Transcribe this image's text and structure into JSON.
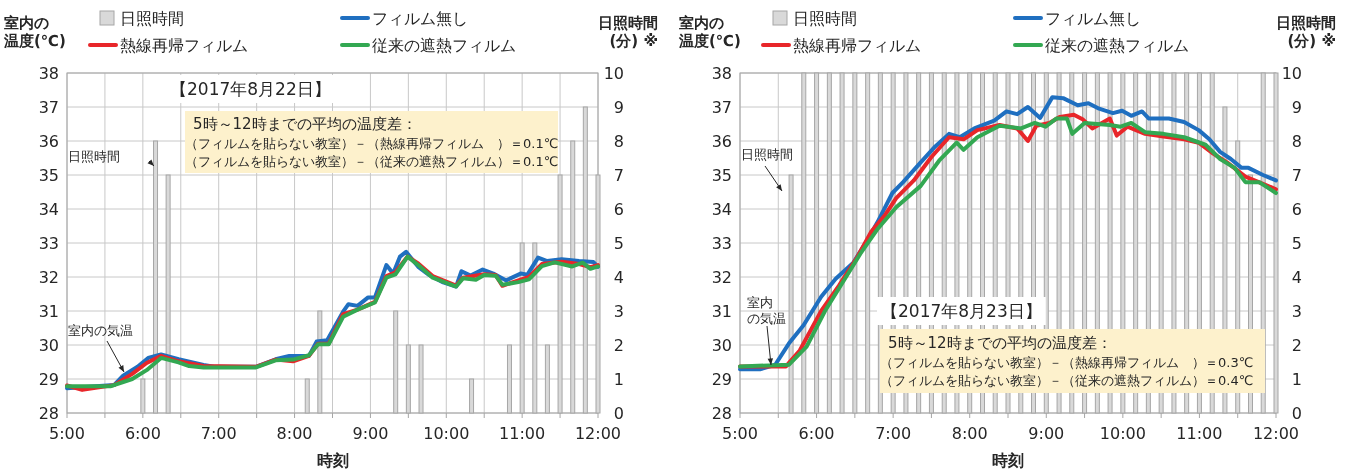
{
  "chart_data": [
    {
      "type": "line",
      "xlabel": "時刻",
      "ylabel": "室内の温度(℃)",
      "y2label": "日照時間\n(分) ※",
      "xlim": [
        5,
        12
      ],
      "xticks": [
        {
          "value": 5,
          "label": "5:00"
        },
        {
          "value": 5.5,
          "label": null
        },
        {
          "value": 6,
          "label": "6:00"
        },
        {
          "value": 6.5,
          "label": null
        },
        {
          "value": 7,
          "label": "7:00"
        },
        {
          "value": 7.5,
          "label": null
        },
        {
          "value": 8,
          "label": "8:00"
        },
        {
          "value": 8.5,
          "label": null
        },
        {
          "value": 9,
          "label": "9:00"
        },
        {
          "value": 9.5,
          "label": null
        },
        {
          "value": 10,
          "label": "10:00"
        },
        {
          "value": 10.5,
          "label": null
        },
        {
          "value": 11,
          "label": "11:00"
        },
        {
          "value": 11.5,
          "label": null
        },
        {
          "value": 12,
          "label": "12:00"
        }
      ],
      "ylim": [
        28,
        38
      ],
      "yticks": [
        28,
        29,
        30,
        31,
        32,
        33,
        34,
        35,
        36,
        37,
        38
      ],
      "y2lim": [
        0,
        10
      ],
      "y2ticks": [
        0,
        1,
        2,
        3,
        4,
        5,
        6,
        7,
        8,
        9,
        10
      ],
      "grid": true,
      "legend": "top",
      "annotations": [
        "【2017年8月22日】",
        "5時～12時までの平均の温度差：",
        "（フィルムを貼らない教室）－（熱線再帰フィルム　）＝0.1℃",
        "（フィルムを貼らない教室）－（従来の遮熱フィルム）＝0.1℃",
        "日照時間",
        "室内の気温"
      ],
      "series": [
        {
          "name": "日照時間",
          "type": "bar",
          "axis": "y2",
          "color": "#d9d9d9",
          "x": [
            5,
            5.167,
            5.333,
            5.5,
            5.667,
            5.833,
            6,
            6.167,
            6.333,
            6.5,
            6.667,
            6.833,
            7,
            7.167,
            7.333,
            7.5,
            7.667,
            7.833,
            8,
            8.167,
            8.333,
            8.5,
            8.667,
            8.833,
            9,
            9.167,
            9.333,
            9.5,
            9.667,
            9.833,
            10,
            10.167,
            10.333,
            10.5,
            10.667,
            10.833,
            11,
            11.167,
            11.333,
            11.5,
            11.667,
            11.833,
            12
          ],
          "values": [
            0,
            0,
            0,
            0,
            0,
            0,
            1,
            8,
            7,
            0,
            0,
            0,
            0,
            0,
            0,
            0,
            0,
            0,
            0,
            1,
            3,
            0,
            0,
            0,
            0,
            0,
            3,
            2,
            2,
            0,
            0,
            0,
            1,
            0,
            0,
            2,
            5,
            5,
            2,
            7,
            8,
            9,
            7
          ]
        },
        {
          "name": "フィルム無し",
          "color": "#1f6fc0",
          "x": [
            5,
            5.62,
            5.74,
            5.93,
            6.07,
            6.24,
            6.47,
            6.8,
            6.94,
            7.49,
            7.75,
            7.93,
            8.19,
            8.29,
            8.43,
            8.64,
            8.71,
            8.83,
            8.97,
            9.06,
            9.21,
            9.3,
            9.39,
            9.47,
            9.63,
            9.78,
            9.96,
            10.13,
            10.2,
            10.32,
            10.48,
            10.62,
            10.79,
            10.98,
            11.07,
            11.21,
            11.33,
            11.52,
            11.75,
            11.94,
            12
          ],
          "values": [
            28.73,
            28.82,
            29.1,
            29.36,
            29.62,
            29.72,
            29.58,
            29.41,
            29.36,
            29.36,
            29.58,
            29.68,
            29.68,
            30.1,
            30.14,
            30.98,
            31.2,
            31.15,
            31.4,
            31.4,
            32.35,
            32.1,
            32.6,
            32.74,
            32.3,
            32.05,
            31.84,
            31.72,
            32.17,
            32.04,
            32.22,
            32.1,
            31.9,
            32.1,
            32.07,
            32.57,
            32.47,
            32.52,
            32.47,
            32.44,
            32.3
          ]
        },
        {
          "name": "熱線再帰フィルム",
          "color": "#e8262a",
          "x": [
            5,
            5.2,
            5.62,
            5.86,
            6.05,
            6.24,
            6.47,
            6.8,
            7.49,
            7.75,
            7.98,
            8.19,
            8.31,
            8.45,
            8.64,
            8.83,
            9.06,
            9.21,
            9.33,
            9.49,
            9.63,
            9.82,
            10.13,
            10.22,
            10.5,
            10.65,
            10.74,
            10.95,
            11.09,
            11.26,
            11.52,
            11.75,
            11.9,
            12
          ],
          "values": [
            28.81,
            28.68,
            28.82,
            29.15,
            29.47,
            29.68,
            29.52,
            29.38,
            29.36,
            29.57,
            29.52,
            29.68,
            30.04,
            30.04,
            30.91,
            31.04,
            31.27,
            32.03,
            32.14,
            32.6,
            32.4,
            32.03,
            31.75,
            31.98,
            32.08,
            32.06,
            31.74,
            31.9,
            32.0,
            32.38,
            32.45,
            32.38,
            32.29,
            32.35
          ]
        },
        {
          "name": "従来の遮熱フィルム",
          "color": "#33a852",
          "x": [
            5,
            5.58,
            5.86,
            6.05,
            6.24,
            6.47,
            6.61,
            6.8,
            7.49,
            7.75,
            7.98,
            8.19,
            8.31,
            8.45,
            8.64,
            8.83,
            9.06,
            9.21,
            9.33,
            9.49,
            9.63,
            9.82,
            10.13,
            10.22,
            10.39,
            10.5,
            10.65,
            10.74,
            10.95,
            11.09,
            11.26,
            11.43,
            11.66,
            11.8,
            11.9,
            12
          ],
          "values": [
            28.79,
            28.79,
            29.0,
            29.26,
            29.62,
            29.49,
            29.38,
            29.34,
            29.34,
            29.55,
            29.57,
            29.7,
            30.02,
            30.02,
            30.83,
            31.04,
            31.25,
            31.98,
            32.08,
            32.6,
            32.35,
            31.98,
            31.72,
            31.96,
            31.92,
            32.06,
            32.04,
            31.77,
            31.85,
            31.93,
            32.32,
            32.43,
            32.31,
            32.42,
            32.24,
            32.31
          ]
        }
      ]
    },
    {
      "type": "line",
      "xlabel": "時刻",
      "ylabel": "室内の温度(℃)",
      "y2label": "日照時間\n(分) ※",
      "xlim": [
        5,
        12
      ],
      "xticks": [
        {
          "value": 5,
          "label": "5:00"
        },
        {
          "value": 5.5,
          "label": null
        },
        {
          "value": 6,
          "label": "6:00"
        },
        {
          "value": 6.5,
          "label": null
        },
        {
          "value": 7,
          "label": "7:00"
        },
        {
          "value": 7.5,
          "label": null
        },
        {
          "value": 8,
          "label": "8:00"
        },
        {
          "value": 8.5,
          "label": null
        },
        {
          "value": 9,
          "label": "9:00"
        },
        {
          "value": 9.5,
          "label": null
        },
        {
          "value": 10,
          "label": "10:00"
        },
        {
          "value": 10.5,
          "label": null
        },
        {
          "value": 11,
          "label": "11:00"
        },
        {
          "value": 11.5,
          "label": null
        },
        {
          "value": 12,
          "label": "12:00"
        }
      ],
      "ylim": [
        28,
        38
      ],
      "yticks": [
        28,
        29,
        30,
        31,
        32,
        33,
        34,
        35,
        36,
        37,
        38
      ],
      "y2lim": [
        0,
        10
      ],
      "y2ticks": [
        0,
        1,
        2,
        3,
        4,
        5,
        6,
        7,
        8,
        9,
        10
      ],
      "grid": true,
      "legend": "top",
      "annotations": [
        "【2017年8月23日】",
        "5時～12時までの平均の温度差：",
        "（フィルムを貼らない教室）－（熱線再帰フィルム　）＝0.3℃",
        "（フィルムを貼らない教室）－（従来の遮熱フィルム）＝0.4℃",
        "日照時間",
        "室内の気温"
      ],
      "series": [
        {
          "name": "日照時間",
          "type": "bar",
          "axis": "y2",
          "color": "#d9d9d9",
          "x": [
            5,
            5.167,
            5.333,
            5.5,
            5.667,
            5.833,
            6,
            6.167,
            6.333,
            6.5,
            6.667,
            6.833,
            7,
            7.167,
            7.333,
            7.5,
            7.667,
            7.833,
            8,
            8.167,
            8.333,
            8.5,
            8.667,
            8.833,
            9,
            9.167,
            9.333,
            9.5,
            9.667,
            9.833,
            10,
            10.167,
            10.333,
            10.5,
            10.667,
            10.833,
            11,
            11.167,
            11.333,
            11.5,
            11.667,
            11.833,
            12
          ],
          "values": [
            0,
            0,
            0,
            0,
            7,
            10,
            10,
            10,
            10,
            10,
            10,
            10,
            10,
            10,
            10,
            10,
            10,
            10,
            10,
            10,
            10,
            10,
            10,
            10,
            10,
            10,
            10,
            10,
            10,
            10,
            10,
            10,
            10,
            10,
            10,
            10,
            10,
            10,
            9,
            8,
            7,
            10,
            10
          ]
        },
        {
          "name": "フィルム無し",
          "color": "#1f6fc0",
          "x": [
            5,
            5.27,
            5.46,
            5.64,
            5.83,
            6.06,
            6.25,
            6.48,
            6.67,
            6.8,
            6.99,
            7.13,
            7.36,
            7.55,
            7.73,
            7.87,
            8.06,
            8.32,
            8.48,
            8.62,
            8.76,
            8.92,
            9.08,
            9.22,
            9.41,
            9.55,
            9.69,
            9.87,
            9.99,
            10.11,
            10.25,
            10.34,
            10.6,
            10.8,
            10.99,
            11.13,
            11.27,
            11.41,
            11.55,
            11.64,
            11.83,
            12
          ],
          "values": [
            29.29,
            29.29,
            29.42,
            30.05,
            30.58,
            31.42,
            31.95,
            32.42,
            33.11,
            33.63,
            34.47,
            34.79,
            35.37,
            35.84,
            36.21,
            36.11,
            36.37,
            36.6,
            36.87,
            36.79,
            37.0,
            36.68,
            37.29,
            37.26,
            37.05,
            37.11,
            36.95,
            36.82,
            36.89,
            36.74,
            36.87,
            36.66,
            36.66,
            36.56,
            36.32,
            36.05,
            35.68,
            35.47,
            35.21,
            35.21,
            35.0,
            34.84
          ]
        },
        {
          "name": "熱線再帰フィルム",
          "color": "#e8262a",
          "x": [
            5,
            5.6,
            5.78,
            6.06,
            6.29,
            6.53,
            6.71,
            6.9,
            7.04,
            7.27,
            7.5,
            7.73,
            7.92,
            8.1,
            8.39,
            8.62,
            8.76,
            8.87,
            9.04,
            9.18,
            9.36,
            9.48,
            9.6,
            9.83,
            9.92,
            10.06,
            10.29,
            10.53,
            10.8,
            10.99,
            11.18,
            11.36,
            11.6,
            11.83,
            12
          ],
          "values": [
            29.37,
            29.37,
            29.84,
            31.0,
            31.74,
            32.58,
            33.32,
            33.84,
            34.32,
            34.84,
            35.53,
            36.11,
            36.05,
            36.32,
            36.47,
            36.37,
            36.0,
            36.45,
            36.53,
            36.71,
            36.77,
            36.63,
            36.37,
            36.66,
            36.16,
            36.42,
            36.21,
            36.13,
            36.05,
            35.95,
            35.63,
            35.37,
            34.95,
            34.74,
            34.58
          ]
        },
        {
          "name": "従来の遮熱フィルム",
          "color": "#33a852",
          "x": [
            5,
            5.64,
            5.87,
            6.11,
            6.34,
            6.57,
            6.8,
            7.04,
            7.36,
            7.6,
            7.83,
            7.92,
            8.1,
            8.39,
            8.67,
            8.85,
            8.99,
            9.13,
            9.27,
            9.34,
            9.5,
            9.83,
            9.97,
            10.11,
            10.29,
            10.53,
            10.8,
            11.08,
            11.27,
            11.46,
            11.6,
            11.78,
            12
          ],
          "values": [
            29.37,
            29.42,
            29.95,
            31.0,
            31.84,
            32.68,
            33.42,
            34.05,
            34.68,
            35.42,
            35.95,
            35.74,
            36.11,
            36.45,
            36.37,
            36.53,
            36.42,
            36.66,
            36.66,
            36.21,
            36.53,
            36.47,
            36.42,
            36.53,
            36.26,
            36.21,
            36.11,
            35.89,
            35.47,
            35.21,
            34.79,
            34.79,
            34.47
          ]
        }
      ]
    }
  ]
}
